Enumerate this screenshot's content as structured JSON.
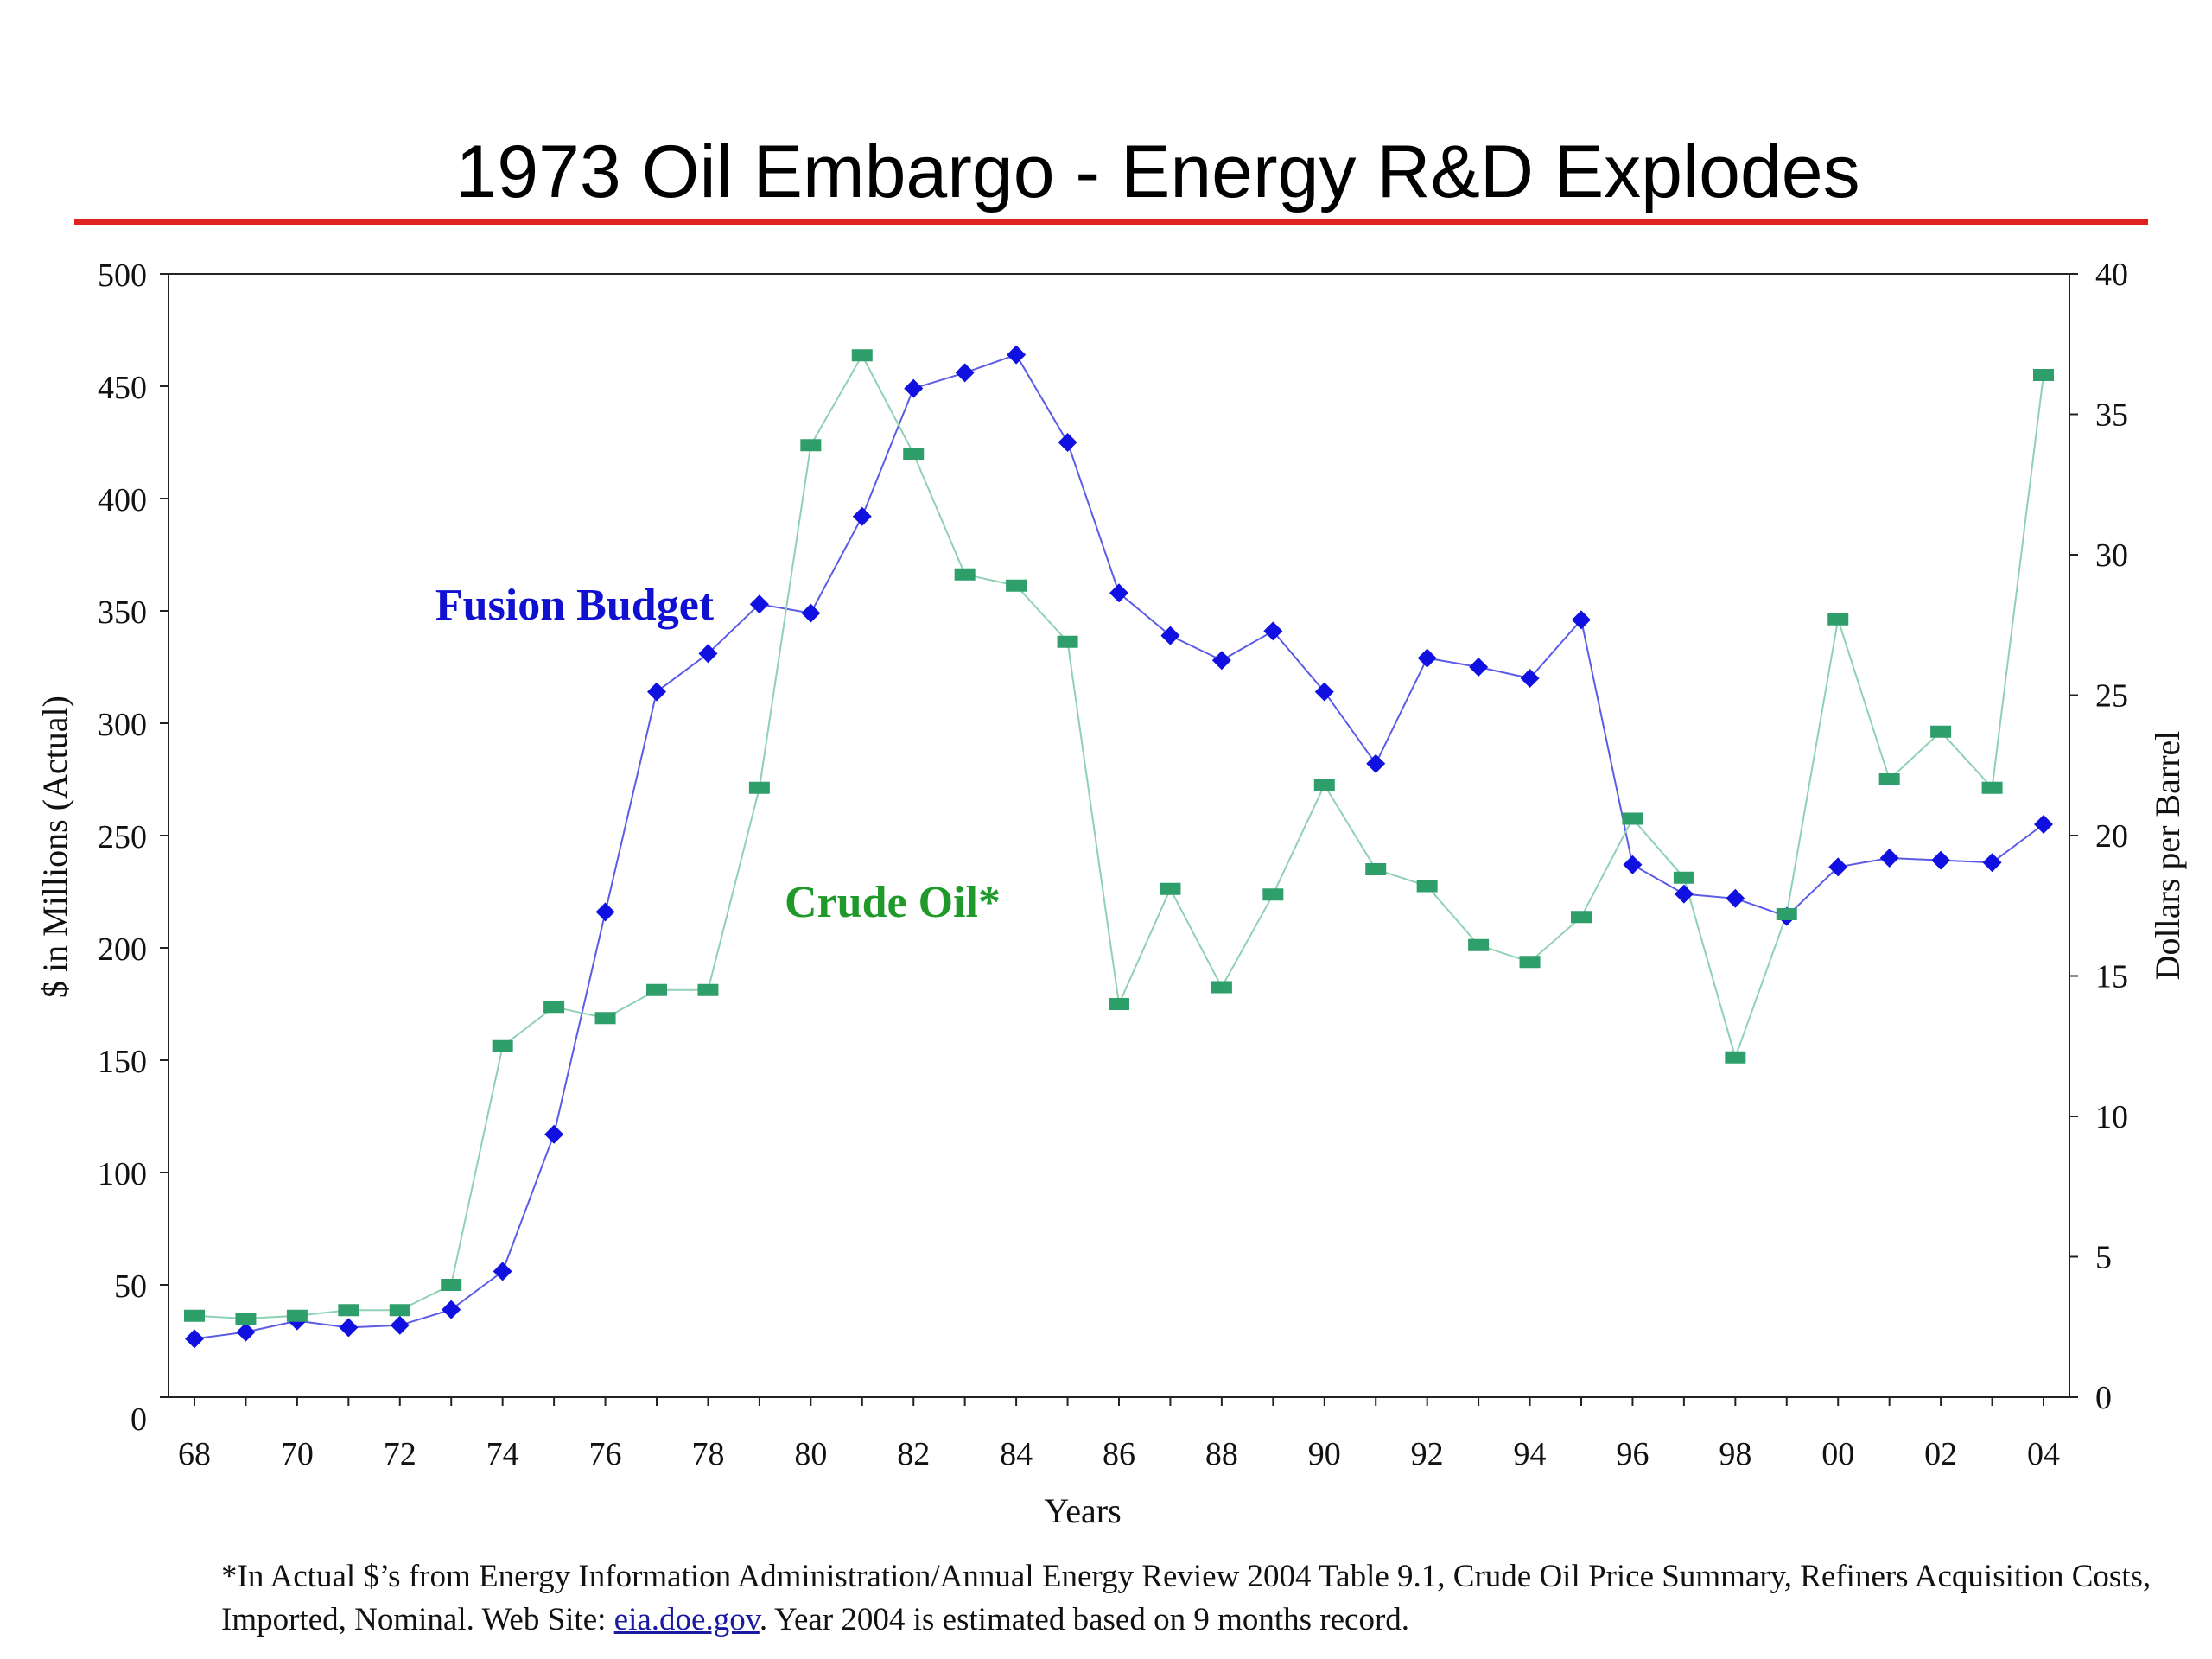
{
  "title": "1973 Oil Embargo - Energy R&D Explodes",
  "footnote": {
    "part1": "*In Actual $’s from Energy Information Administration/Annual Energy Review 2004 Table 9.1, Crude Oil Price Summary, Refiners Acquisition Costs, Imported, Nominal.  Web Site: ",
    "link": "eia.doe.gov",
    "part2": ".  Year 2004 is estimated based on 9 months record."
  },
  "chart_data": {
    "type": "line",
    "xlabel": "Years",
    "ylabel_left": "$ in Millions (Actual)",
    "ylabel_right": "Dollars per Barrel",
    "ylim_left": [
      0,
      500
    ],
    "ylim_right": [
      0,
      40
    ],
    "yticks_left": [
      "0",
      "50",
      "100",
      "150",
      "200",
      "250",
      "300",
      "350",
      "400",
      "450",
      "500"
    ],
    "yticks_right": [
      "0",
      "5",
      "10",
      "15",
      "20",
      "25",
      "30",
      "35",
      "40"
    ],
    "x_tick_labels": [
      "68",
      "70",
      "72",
      "74",
      "76",
      "78",
      "80",
      "82",
      "84",
      "86",
      "88",
      "90",
      "92",
      "94",
      "96",
      "98",
      "00",
      "02",
      "04"
    ],
    "x": [
      1968,
      1969,
      1970,
      1971,
      1972,
      1973,
      1974,
      1975,
      1976,
      1977,
      1978,
      1979,
      1980,
      1981,
      1982,
      1983,
      1984,
      1985,
      1986,
      1987,
      1988,
      1989,
      1990,
      1991,
      1992,
      1993,
      1994,
      1995,
      1996,
      1997,
      1998,
      1999,
      2000,
      2001,
      2002,
      2003,
      2004
    ],
    "series": [
      {
        "name": "Fusion Budget",
        "axis": "left",
        "color": "#1010e0",
        "marker": "diamond",
        "values": [
          26,
          29,
          34,
          31,
          32,
          39,
          56,
          117,
          216,
          314,
          331,
          353,
          349,
          392,
          449,
          456,
          464,
          425,
          358,
          339,
          328,
          341,
          314,
          282,
          329,
          325,
          320,
          346,
          237,
          224,
          222,
          214,
          236,
          240,
          239,
          238,
          255
        ]
      },
      {
        "name": "Crude Oil*",
        "axis": "right",
        "color": "#2e9e6b",
        "marker": "rectangle",
        "values": [
          2.9,
          2.8,
          2.9,
          3.1,
          3.1,
          4.0,
          12.5,
          13.9,
          13.5,
          14.5,
          14.5,
          21.7,
          33.9,
          37.1,
          33.6,
          29.3,
          28.9,
          26.9,
          14.0,
          18.1,
          14.6,
          17.9,
          21.8,
          18.8,
          18.2,
          16.1,
          15.5,
          17.1,
          20.6,
          18.5,
          12.1,
          17.2,
          27.7,
          22.0,
          23.7,
          21.7,
          36.4
        ]
      }
    ]
  }
}
